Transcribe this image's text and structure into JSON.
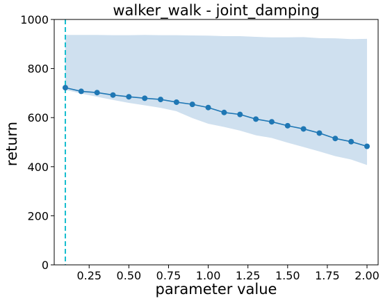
{
  "chart_data": {
    "type": "line",
    "title": "walker_walk - joint_damping",
    "xlabel": "parameter value",
    "ylabel": "return",
    "xlim": [
      0.03,
      2.07
    ],
    "ylim": [
      0,
      1000
    ],
    "x_ticks": [
      0.25,
      0.5,
      0.75,
      1.0,
      1.25,
      1.5,
      1.75,
      2.0
    ],
    "x_tick_labels": [
      "0.25",
      "0.50",
      "0.75",
      "1.00",
      "1.25",
      "1.50",
      "1.75",
      "2.00"
    ],
    "y_ticks": [
      0,
      200,
      400,
      600,
      800,
      1000
    ],
    "y_tick_labels": [
      "0",
      "200",
      "400",
      "600",
      "800",
      "1000"
    ],
    "grid": false,
    "reference_line": {
      "x": 0.1,
      "style": "dashed",
      "color": "#17becf"
    },
    "series": [
      {
        "color": "#1f77b4",
        "band_color": "#cfe0ef",
        "x": [
          0.1,
          0.2,
          0.3,
          0.4,
          0.5,
          0.6,
          0.7,
          0.8,
          0.9,
          1.0,
          1.1,
          1.2,
          1.3,
          1.4,
          1.5,
          1.6,
          1.7,
          1.8,
          1.9,
          2.0
        ],
        "y": [
          722,
          707,
          702,
          692,
          685,
          679,
          674,
          663,
          654,
          641,
          621,
          613,
          594,
          583,
          567,
          554,
          537,
          515,
          502,
          483
        ],
        "upper": [
          937,
          937,
          937,
          936,
          936,
          937,
          936,
          936,
          935,
          934,
          932,
          932,
          929,
          927,
          927,
          928,
          924,
          923,
          920,
          921
        ],
        "lower": [
          713,
          698,
          685,
          672,
          660,
          650,
          640,
          626,
          598,
          575,
          562,
          547,
          528,
          517,
          498,
          480,
          462,
          443,
          429,
          407
        ]
      }
    ]
  }
}
